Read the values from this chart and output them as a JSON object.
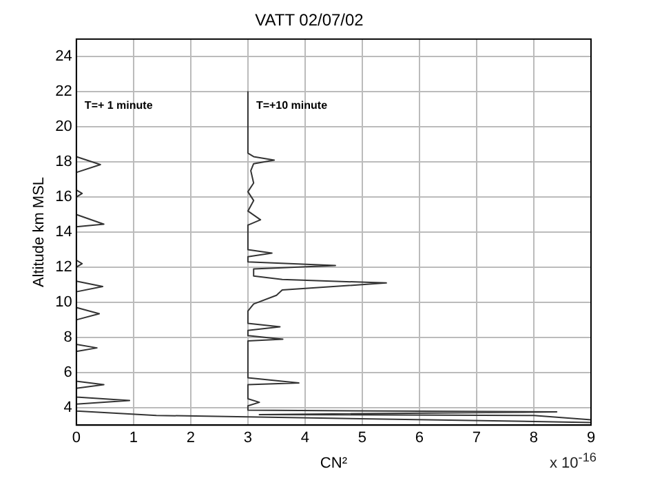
{
  "chart_data": {
    "type": "line",
    "title": "VATT 02/07/02",
    "xlabel": "CN²",
    "ylabel": "Altitude km MSL",
    "xlim": [
      0,
      9
    ],
    "xticks": [
      0,
      1,
      2,
      3,
      4,
      5,
      6,
      7,
      8,
      9
    ],
    "ylim": [
      3,
      25
    ],
    "yticks": [
      4,
      6,
      8,
      10,
      12,
      14,
      16,
      18,
      20,
      22,
      24
    ],
    "grid": true,
    "marker": "none",
    "line_style": "solid",
    "annotations": [
      "x 10$^{-16}$"
    ],
    "series": [
      {
        "name": "T=+ 1 minute",
        "color": "#333333",
        "x": [
          0,
          0,
          0.42,
          0,
          0,
          0.1,
          0,
          0,
          0.48,
          0,
          0,
          0.1,
          0,
          0,
          0.46,
          0,
          0,
          0.4,
          0,
          0,
          0.36,
          0,
          0,
          0.48,
          0,
          0,
          0.93,
          0,
          0,
          1.4,
          9
        ],
        "values": [
          22,
          18.3,
          17.85,
          17.4,
          16.4,
          16.2,
          16,
          15,
          14.45,
          14.3,
          12.4,
          12.2,
          12,
          11.2,
          10.9,
          10.6,
          9.7,
          9.35,
          9,
          7.6,
          7.4,
          7.2,
          5.5,
          5.3,
          5.1,
          4.6,
          4.4,
          4.2,
          3.8,
          3.55,
          3.15
        ]
      },
      {
        "name": "T=+10 minute",
        "color": "#333333",
        "x": [
          3,
          3,
          3.1,
          3.46,
          3.1,
          3.05,
          3.1,
          3,
          3.1,
          3,
          3.22,
          3,
          3,
          3.42,
          3,
          3,
          4.53,
          3.1,
          3.1,
          3.6,
          5.42,
          3.6,
          3.5,
          3.1,
          3,
          3,
          3.56,
          3,
          3,
          3.61,
          3,
          3,
          3.89,
          3,
          3,
          3.2,
          3,
          3,
          8.4,
          3.2,
          8,
          9
        ],
        "values": [
          22,
          18.5,
          18.3,
          18.1,
          17.9,
          17.5,
          16.8,
          16.3,
          15.8,
          15.2,
          14.7,
          14.4,
          13,
          12.8,
          12.6,
          12.3,
          12.1,
          11.9,
          11.5,
          11.3,
          11.1,
          10.7,
          10.4,
          9.9,
          9.5,
          8.8,
          8.6,
          8.4,
          8.1,
          7.9,
          7.8,
          5.7,
          5.4,
          5.3,
          4.5,
          4.3,
          4.1,
          3.85,
          3.75,
          3.6,
          3.55,
          3.3
        ]
      }
    ]
  }
}
